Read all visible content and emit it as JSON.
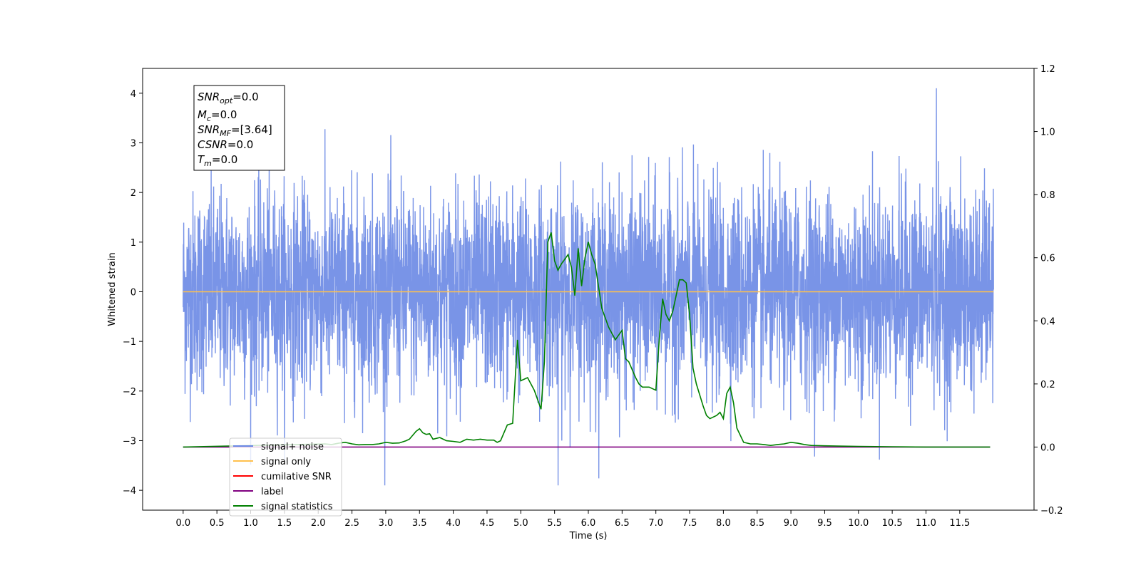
{
  "chart_data": {
    "type": "line",
    "xlabel": "Time (s)",
    "ylabel": "Whitened strain",
    "xlim": [
      -0.6,
      12.6
    ],
    "ylim": [
      -4.4,
      4.5
    ],
    "ylim_right": [
      -0.2,
      1.2
    ],
    "x_ticks": [
      0.0,
      0.5,
      1.0,
      1.5,
      2.0,
      2.5,
      3.0,
      3.5,
      4.0,
      4.5,
      5.0,
      5.5,
      6.0,
      6.5,
      7.0,
      7.5,
      8.0,
      8.5,
      9.0,
      9.5,
      10.0,
      10.5,
      11.0,
      11.5
    ],
    "x_tick_labels": [
      "0.0",
      "0.5",
      "1.0",
      "1.5",
      "2.0",
      "2.5",
      "3.0",
      "3.5",
      "4.0",
      "4.5",
      "5.0",
      "5.5",
      "6.0",
      "6.5",
      "7.0",
      "7.5",
      "8.0",
      "8.5",
      "9.0",
      "9.5",
      "10.0",
      "10.5",
      "11.0",
      "11.5"
    ],
    "y_ticks_left": [
      4,
      3,
      2,
      1,
      0,
      -1,
      -2,
      -3,
      -4
    ],
    "y_tick_labels_left": [
      "4",
      "3",
      "2",
      "1",
      "0",
      "−1",
      "−2",
      "−3",
      "−4"
    ],
    "y_ticks_right": [
      1.2,
      1.0,
      0.8,
      0.6,
      0.4,
      0.2,
      0.0,
      -0.2
    ],
    "y_tick_labels_right": [
      "1.2",
      "1.0",
      "0.8",
      "0.6",
      "0.4",
      "0.2",
      "0.0",
      "−0.2"
    ],
    "legend_position": "bottom-left",
    "series": [
      {
        "name": "signal+ noise",
        "axis": "left",
        "color": "#6a88e4",
        "x_range": [
          0.0,
          12.0
        ],
        "std": 1.0,
        "max_value": 4.1,
        "min_value": -3.9,
        "style": "dense noise trace"
      },
      {
        "name": "signal only",
        "axis": "left",
        "color": "#ffc04d",
        "x": [
          0.0,
          12.0
        ],
        "y": [
          0.0,
          0.0
        ]
      },
      {
        "name": "cumilative SNR",
        "axis": "right",
        "color": "#ff0000",
        "x": [],
        "y": []
      },
      {
        "name": "label",
        "axis": "right",
        "color": "#800080",
        "x": [
          0.0,
          11.95
        ],
        "y": [
          0.0,
          0.0
        ]
      },
      {
        "name": "signal statistics",
        "axis": "right",
        "color": "#008000",
        "x": [
          0.0,
          2.1,
          2.2,
          2.3,
          2.4,
          2.5,
          2.6,
          2.7,
          2.8,
          2.9,
          3.0,
          3.1,
          3.2,
          3.3,
          3.35,
          3.45,
          3.5,
          3.55,
          3.6,
          3.65,
          3.7,
          3.8,
          3.9,
          4.0,
          4.1,
          4.15,
          4.2,
          4.3,
          4.4,
          4.5,
          4.6,
          4.65,
          4.7,
          4.8,
          4.88,
          4.95,
          5.0,
          5.1,
          5.15,
          5.2,
          5.3,
          5.35,
          5.4,
          5.45,
          5.5,
          5.55,
          5.6,
          5.7,
          5.75,
          5.8,
          5.85,
          5.9,
          5.95,
          6.0,
          6.05,
          6.1,
          6.2,
          6.3,
          6.4,
          6.5,
          6.55,
          6.6,
          6.7,
          6.75,
          6.8,
          6.85,
          6.9,
          7.0,
          7.05,
          7.1,
          7.15,
          7.2,
          7.25,
          7.3,
          7.35,
          7.4,
          7.45,
          7.5,
          7.55,
          7.6,
          7.7,
          7.75,
          7.8,
          7.9,
          7.95,
          8.0,
          8.05,
          8.1,
          8.15,
          8.2,
          8.3,
          8.4,
          8.5,
          8.6,
          8.7,
          8.8,
          8.9,
          9.0,
          9.1,
          9.2,
          9.3,
          9.5,
          9.7,
          10.0,
          10.5,
          11.0,
          11.5,
          11.95
        ],
        "y": [
          0.0,
          0.01,
          0.008,
          0.012,
          0.015,
          0.01,
          0.007,
          0.008,
          0.008,
          0.01,
          0.015,
          0.012,
          0.013,
          0.02,
          0.025,
          0.05,
          0.058,
          0.045,
          0.04,
          0.042,
          0.025,
          0.03,
          0.02,
          0.018,
          0.015,
          0.02,
          0.025,
          0.022,
          0.025,
          0.022,
          0.022,
          0.015,
          0.02,
          0.07,
          0.075,
          0.34,
          0.21,
          0.22,
          0.2,
          0.18,
          0.12,
          0.27,
          0.65,
          0.68,
          0.59,
          0.56,
          0.58,
          0.61,
          0.57,
          0.48,
          0.63,
          0.51,
          0.6,
          0.65,
          0.61,
          0.58,
          0.44,
          0.38,
          0.34,
          0.37,
          0.28,
          0.27,
          0.22,
          0.2,
          0.19,
          0.19,
          0.19,
          0.18,
          0.34,
          0.47,
          0.42,
          0.4,
          0.43,
          0.48,
          0.53,
          0.53,
          0.52,
          0.42,
          0.25,
          0.2,
          0.13,
          0.1,
          0.09,
          0.1,
          0.11,
          0.09,
          0.17,
          0.19,
          0.14,
          0.06,
          0.015,
          0.01,
          0.01,
          0.008,
          0.005,
          0.008,
          0.01,
          0.015,
          0.012,
          0.008,
          0.005,
          0.004,
          0.003,
          0.002,
          0.001,
          0.0,
          0.0,
          0.0
        ]
      }
    ]
  },
  "info_box": {
    "lines": [
      {
        "main": "SNR",
        "sub": "opt",
        "value": "=0.0"
      },
      {
        "main": "M",
        "sub": "c",
        "value": "=0.0"
      },
      {
        "main": "SNR",
        "sub": "MF",
        "value": "=[3.64]"
      },
      {
        "main": "CSNR",
        "sub": "",
        "value": "=0.0"
      },
      {
        "main": "T",
        "sub": "m",
        "value": "=0.0"
      }
    ]
  }
}
